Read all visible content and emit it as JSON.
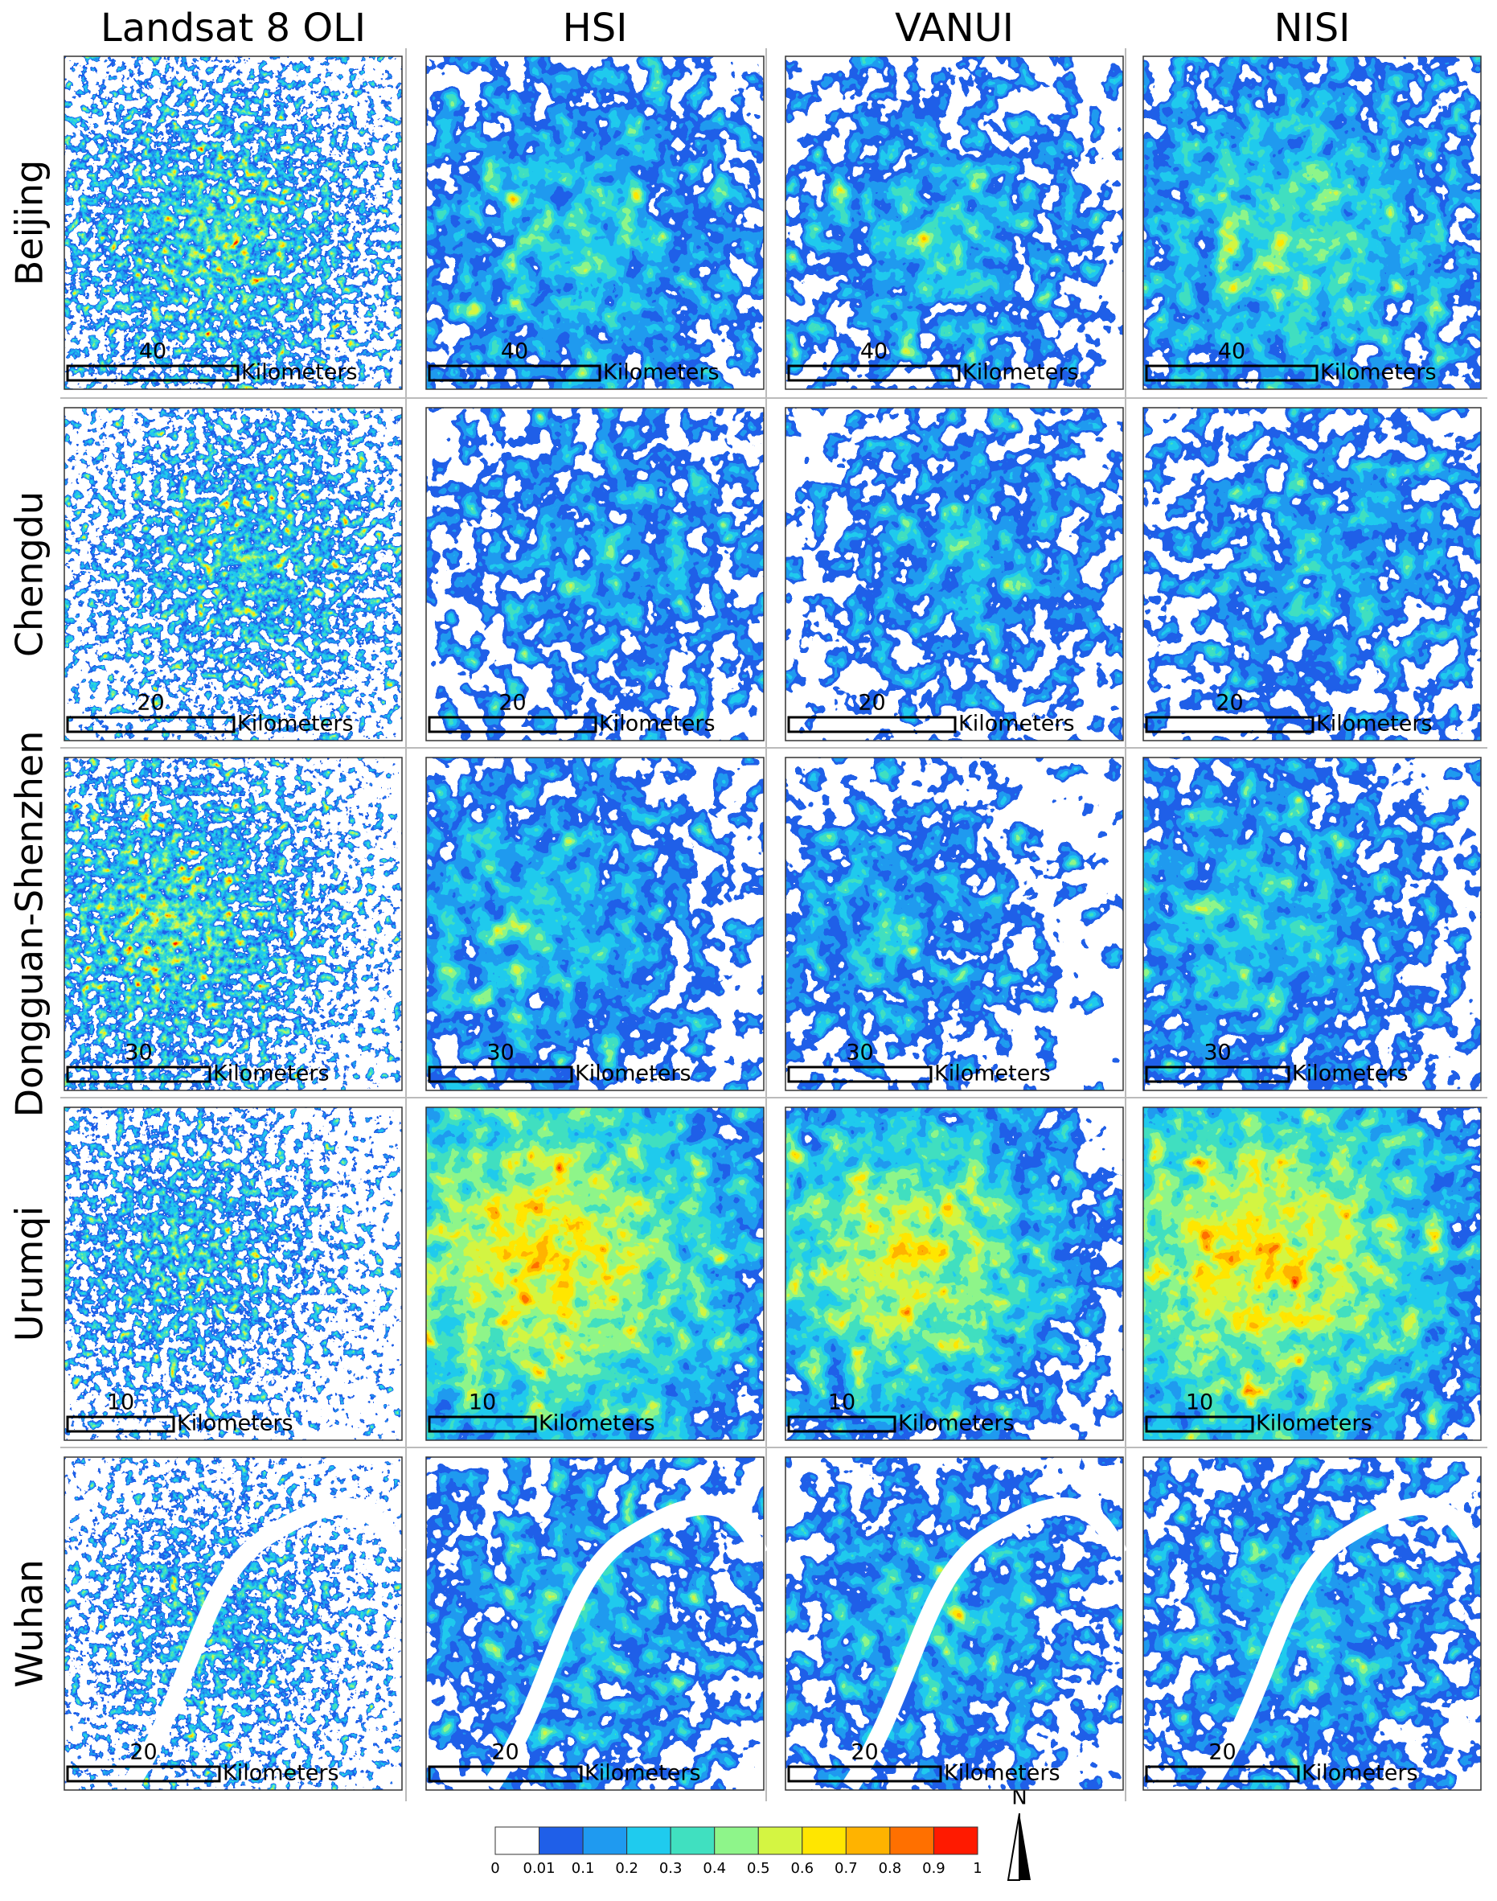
{
  "column_headers": [
    "Landsat 8 OLI",
    "HSI",
    "VANUI",
    "NISI"
  ],
  "rows": [
    {
      "label": "Beijing",
      "scale_value": 40
    },
    {
      "label": "Chengdu",
      "scale_value": 20
    },
    {
      "label": "Dongguan-Shenzhen",
      "scale_value": 30
    },
    {
      "label": "Urumqi",
      "scale_value": 10
    },
    {
      "label": "Wuhan",
      "scale_value": 20
    }
  ],
  "scale_unit": "Kilometers",
  "legend": {
    "colors": [
      "#ffffff",
      "#1f5fe8",
      "#1f9af0",
      "#1fcbee",
      "#40e0c0",
      "#8ef58a",
      "#d4f542",
      "#ffe600",
      "#ffb300",
      "#ff7000",
      "#ff1a00"
    ],
    "labels": [
      0,
      0.01,
      0.1,
      0.2,
      0.3,
      0.4,
      0.5,
      0.6,
      0.7,
      0.8,
      0.9,
      1
    ]
  },
  "north": "N"
}
